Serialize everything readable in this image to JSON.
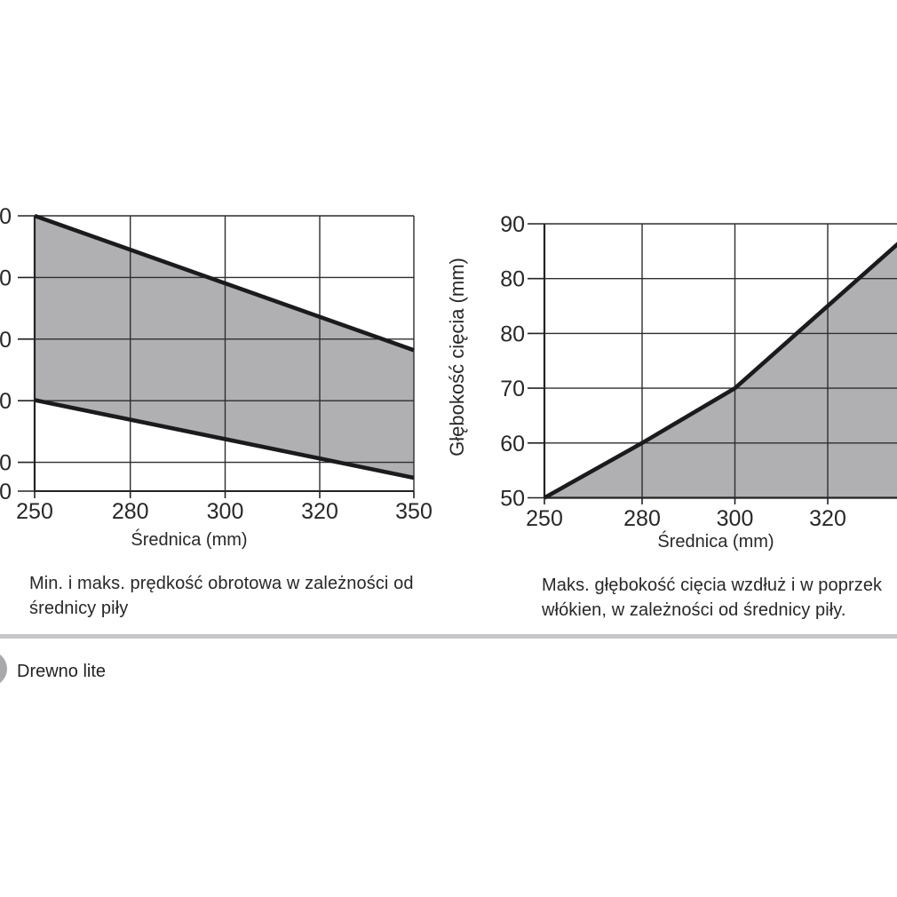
{
  "page": {
    "background": "#ffffff"
  },
  "colors": {
    "band_fill": "#b0b0b2",
    "data_line": "#1b1b1d",
    "gridline": "#2e2e30",
    "axis": "#232325",
    "text": "#28282a",
    "divider": "#c7c7c9",
    "bullet": "#a9a9ac"
  },
  "chart_data": [
    {
      "type": "area",
      "subtype": "band-between-two-lines",
      "caption": "Min. i maks. prędkość obrotowa w zależności od średnicy piły",
      "xlabel": "Średnica (mm)",
      "x_tick_labels": [
        "250",
        "280",
        "300",
        "320",
        "350"
      ],
      "y_tick_labels": [
        "0",
        "0",
        "0",
        "0",
        "0",
        "0"
      ],
      "y_tick_note": "y-axis numbers are clipped by the image left edge; only the trailing 0 of each value is visible",
      "x_axis_note": "labeled ticks are equally spaced although intervals are 30/20/20/30 mm",
      "grid": true,
      "series": [
        {
          "name": "maks. prędkość obrotowa",
          "x": [
            250,
            350
          ],
          "x_tick_index": [
            0,
            4
          ],
          "y_gridline_index": [
            0,
            2.18
          ]
        },
        {
          "name": "min. prędkość obrotowa",
          "x": [
            250,
            350
          ],
          "x_tick_index": [
            0,
            4
          ],
          "y_gridline_index": [
            2.99,
            4.25
          ]
        }
      ]
    },
    {
      "type": "area",
      "caption": "Maks. głębokość cięcia wzdłuż i w poprzek włókien, w zależności od średnicy piły.",
      "xlabel": "Średnica (mm)",
      "ylabel": "Głębokość cięcia (mm)",
      "x_tick_labels": [
        "250",
        "280",
        "300",
        "320"
      ],
      "x_tick_note": "the 350 tick and right chart edge are clipped by the image right edge",
      "y_tick_labels": [
        "90",
        "80",
        "80",
        "70",
        "60",
        "50"
      ],
      "y_tick_note": "the value 80 is printed twice on the axis (as in source)",
      "ylim": [
        50,
        90
      ],
      "grid": true,
      "points": [
        {
          "x": 250,
          "y": 50
        },
        {
          "x": 280,
          "y": 60
        },
        {
          "x": 300,
          "y": 70
        },
        {
          "x": 350,
          "y": 90
        }
      ],
      "series_render": {
        "x_tick_index": [
          0,
          1,
          2,
          4
        ],
        "y_gridline_index": [
          5,
          4,
          3,
          0
        ]
      }
    }
  ],
  "footer": {
    "label": "Drewno lite"
  }
}
